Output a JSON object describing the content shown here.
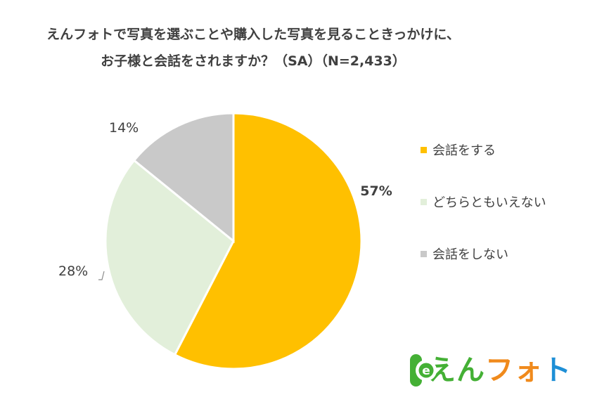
{
  "chart_data": {
    "type": "pie",
    "title_lines": [
      "えんフォトで写真を選ぶことや購入した写真を見ることきっかけに、",
      "お子様と会話をされますか？（SA）（N=2,433）"
    ],
    "slices": [
      {
        "name": "会話をする",
        "value": 57,
        "label": "57%",
        "color": "#FFC000",
        "label_bold": true
      },
      {
        "name": "どちらともいえない",
        "value": 28,
        "label": "28%",
        "color": "#E2EFDA",
        "label_bold": false
      },
      {
        "name": "会話をしない",
        "value": 14,
        "label": "14%",
        "color": "#C9C9C9",
        "label_bold": false
      }
    ],
    "start": "12 o'clock",
    "direction": "clockwise",
    "legend_position": "right"
  },
  "logo": {
    "badge_letter": "e",
    "text_parts": [
      "えん",
      "フォ",
      "ト"
    ]
  }
}
